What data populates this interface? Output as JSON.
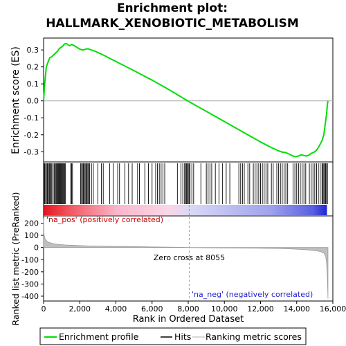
{
  "chart_data": {
    "type": "line",
    "title_line1": "Enrichment plot:",
    "title_line2": "HALLMARK_XENOBIOTIC_METABOLISM",
    "es_ylabel": "Enrichment score (ES)",
    "metric_ylabel": "Ranked list metric (PreRanked)",
    "xlabel": "Rank in Ordered Dataset",
    "xlim": [
      0,
      16000
    ],
    "x_ticks": [
      0,
      2000,
      4000,
      6000,
      8000,
      10000,
      12000,
      14000,
      16000
    ],
    "x_tick_labels": [
      "0",
      "2,000",
      "4,000",
      "6,000",
      "8,000",
      "10,000",
      "12,000",
      "14,000",
      "16,000"
    ],
    "es_ylim": [
      -0.36,
      0.37
    ],
    "es_ticks": [
      -0.3,
      -0.2,
      -0.1,
      0.0,
      0.1,
      0.2,
      0.3
    ],
    "es_tick_labels": [
      "-0.3",
      "-0.2",
      "-0.1",
      "0.0",
      "0.1",
      "0.2",
      "0.3"
    ],
    "metric_ylim": [
      -440,
      260
    ],
    "metric_ticks": [
      -400,
      -300,
      -200,
      -100,
      0,
      100,
      200
    ],
    "metric_tick_labels": [
      "-400",
      "-300",
      "-200",
      "-100",
      "0",
      "100",
      "200"
    ],
    "zero_cross_rank": 8055,
    "zero_cross_label": "Zero cross at 8055",
    "pos_label": "'na_pos' (positively correlated)",
    "neg_label": "'na_neg' (negatively correlated)",
    "series": [
      {
        "name": "Enrichment profile",
        "color": "#00ee00",
        "x": [
          0,
          60,
          150,
          250,
          350,
          450,
          550,
          650,
          750,
          850,
          950,
          1050,
          1150,
          1250,
          1350,
          1450,
          1550,
          1650,
          1800,
          2000,
          2150,
          2250,
          2350,
          2450,
          2550,
          2700,
          2900,
          3100,
          3400,
          3700,
          4000,
          4500,
          5000,
          5500,
          6000,
          6500,
          7000,
          7500,
          8000,
          8500,
          9000,
          9500,
          10000,
          10500,
          11000,
          11500,
          12000,
          12500,
          12800,
          13000,
          13200,
          13400,
          13600,
          13800,
          13950,
          14100,
          14250,
          14400,
          14550,
          14700,
          14800,
          14900,
          15000,
          15100,
          15200,
          15300,
          15400,
          15500,
          15550,
          15600,
          15650,
          15700,
          15730
        ],
        "values": [
          0.0,
          0.1,
          0.2,
          0.23,
          0.255,
          0.26,
          0.27,
          0.28,
          0.29,
          0.305,
          0.315,
          0.32,
          0.335,
          0.338,
          0.33,
          0.325,
          0.332,
          0.328,
          0.318,
          0.305,
          0.3,
          0.302,
          0.305,
          0.307,
          0.303,
          0.298,
          0.29,
          0.28,
          0.265,
          0.248,
          0.232,
          0.205,
          0.178,
          0.15,
          0.122,
          0.092,
          0.062,
          0.03,
          -0.002,
          -0.032,
          -0.062,
          -0.092,
          -0.122,
          -0.152,
          -0.182,
          -0.212,
          -0.242,
          -0.27,
          -0.285,
          -0.295,
          -0.302,
          -0.305,
          -0.315,
          -0.325,
          -0.33,
          -0.325,
          -0.318,
          -0.322,
          -0.325,
          -0.318,
          -0.31,
          -0.305,
          -0.3,
          -0.29,
          -0.275,
          -0.255,
          -0.235,
          -0.2,
          -0.16,
          -0.12,
          -0.08,
          -0.02,
          0.0
        ]
      },
      {
        "name": "Hits",
        "hits": [
          20,
          60,
          110,
          160,
          210,
          260,
          310,
          350,
          400,
          450,
          520,
          580,
          620,
          680,
          720,
          760,
          800,
          840,
          880,
          920,
          960,
          1000,
          1040,
          1080,
          1120,
          1160,
          1200,
          1500,
          1550,
          1600,
          2050,
          2100,
          2150,
          2200,
          2250,
          2300,
          2350,
          2400,
          2450,
          2500,
          2550,
          2650,
          2750,
          3000,
          3200,
          3300,
          3650,
          3850,
          4100,
          4200,
          4500,
          4700,
          4900,
          5200,
          5300,
          5600,
          5800,
          6000,
          6200,
          6300,
          6400,
          6500,
          6600,
          6700,
          7400,
          7600,
          7700,
          7800,
          7850,
          7900,
          7950,
          8000,
          8050,
          8100,
          8200,
          8300,
          8700,
          9000,
          9100,
          9200,
          9300,
          9500,
          9700,
          9900,
          10100,
          10300,
          10800,
          10900,
          11000,
          11100,
          11300,
          11400,
          11600,
          11700,
          11800,
          11900,
          12000,
          12100,
          12200,
          12300,
          12400,
          12600,
          12700,
          12900,
          13000,
          13100,
          13200,
          13300,
          13400,
          13500,
          13800,
          13900,
          14000,
          14100,
          14200,
          14300,
          14400,
          14500,
          14700,
          14800,
          14900,
          15000,
          15100,
          15200,
          15300,
          15400,
          15450,
          15500,
          15550,
          15600,
          15650,
          15700
        ]
      },
      {
        "name": "Ranking metric scores",
        "x": [
          0,
          20,
          60,
          120,
          200,
          300,
          500,
          800,
          1200,
          1800,
          2500,
          3500,
          5000,
          6500,
          7500,
          8055,
          9000,
          10500,
          12000,
          13000,
          13800,
          14500,
          15000,
          15300,
          15500,
          15600,
          15650,
          15700,
          15730
        ],
        "values": [
          240,
          110,
          80,
          62,
          50,
          42,
          33,
          26,
          21,
          17,
          13,
          10,
          7,
          4,
          2,
          0,
          -2,
          -4,
          -6,
          -8,
          -12,
          -18,
          -25,
          -33,
          -45,
          -70,
          -120,
          -250,
          -420
        ]
      }
    ]
  }
}
